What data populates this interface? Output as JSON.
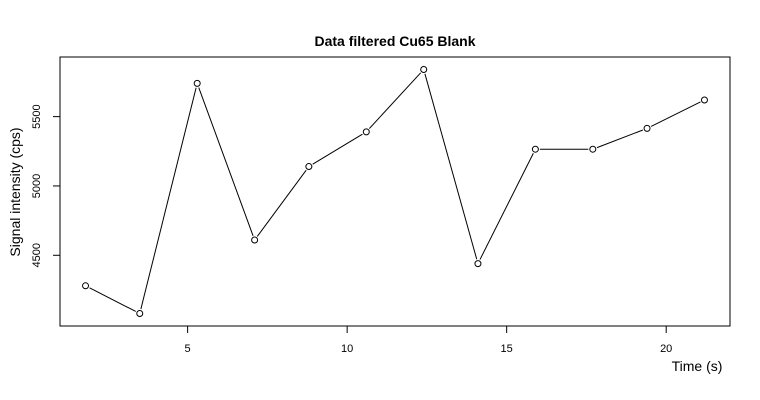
{
  "chart_data": {
    "type": "line",
    "title": "Data filtered Cu65 Blank",
    "xlabel": "Time (s)",
    "ylabel": "Signal intensity (cps)",
    "x": [
      1.8,
      3.5,
      5.3,
      7.1,
      8.8,
      10.6,
      12.4,
      14.1,
      15.9,
      17.7,
      19.4,
      21.2
    ],
    "y": [
      4280,
      4080,
      5740,
      4610,
      5140,
      5390,
      5840,
      4440,
      5265,
      5265,
      5415,
      5620
    ],
    "xlim": [
      1.0,
      22.0
    ],
    "ylim": [
      3990,
      5930
    ],
    "xticks": [
      5,
      10,
      15,
      20
    ],
    "yticks": [
      4500,
      5000,
      5500
    ],
    "grid": false,
    "legend": "none"
  }
}
